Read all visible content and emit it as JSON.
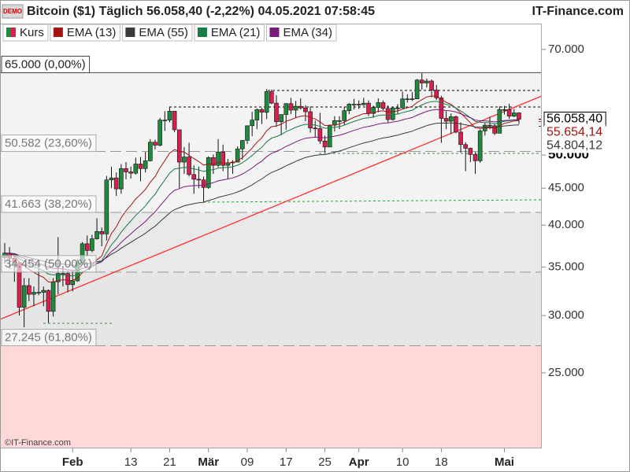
{
  "chart_data": {
    "type": "candlestick",
    "title": "Bitcoin ($1) Täglich 56.058,40 (-2,22%) 04.05.2021 07:58:45",
    "brand": "IT-Finance.com",
    "copyright": "©IT-Finance.com",
    "badge": "DEMO",
    "log_scale": true,
    "ylim": [
      19650,
      76000
    ],
    "yticks": [
      {
        "value": 25000,
        "label": "25.000"
      },
      {
        "value": 30000,
        "label": "30.000"
      },
      {
        "value": 35000,
        "label": "35.000"
      },
      {
        "value": 40000,
        "label": "40.000"
      },
      {
        "value": 45000,
        "label": "45.000"
      },
      {
        "value": 50000,
        "label": "50.000"
      },
      {
        "value": 70000,
        "label": "70.000"
      }
    ],
    "categories": [
      null,
      null,
      null,
      null,
      null,
      null,
      null,
      null,
      null,
      null,
      null,
      null,
      null,
      null,
      "Feb",
      null,
      null,
      null,
      null,
      null,
      null,
      null,
      null,
      null,
      null,
      null,
      "13",
      null,
      null,
      null,
      null,
      null,
      null,
      null,
      "21",
      null,
      null,
      null,
      null,
      null,
      null,
      null,
      "Mär",
      null,
      null,
      null,
      null,
      null,
      null,
      null,
      "09",
      null,
      null,
      null,
      null,
      null,
      null,
      null,
      "17",
      null,
      null,
      null,
      null,
      null,
      null,
      null,
      "25",
      null,
      null,
      null,
      null,
      null,
      null,
      "Apr",
      null,
      null,
      null,
      null,
      null,
      null,
      null,
      null,
      "10",
      null,
      null,
      null,
      null,
      null,
      null,
      null,
      "18",
      null,
      null,
      null,
      null,
      null,
      null,
      null,
      null,
      null,
      null,
      null,
      null,
      "Mai",
      null,
      null,
      null
    ],
    "open": [
      36100,
      36600,
      36000,
      35500,
      30800,
      33000,
      32100,
      32300,
      32300,
      32500,
      30400,
      33400,
      34300,
      34300,
      33100,
      33500,
      35500,
      37700,
      36900,
      38300,
      39200,
      38900,
      46200,
      46500,
      44900,
      47900,
      47400,
      47200,
      48600,
      47900,
      49100,
      52100,
      51600,
      55900,
      55900,
      57500,
      54200,
      48900,
      49700,
      47000,
      46300,
      46200,
      45100,
      49600,
      48400,
      50500,
      48400,
      48800,
      48900,
      51000,
      52400,
      54900,
      55900,
      57800,
      57300,
      61200,
      59000,
      55600,
      56900,
      58900,
      57700,
      58400,
      58100,
      57400,
      54500,
      54400,
      52300,
      51300,
      55000,
      55800,
      55800,
      57600,
      58800,
      58800,
      58700,
      59000,
      57100,
      58200,
      59100,
      58000,
      56000,
      58100,
      58100,
      59800,
      59800,
      59800,
      63500,
      62900,
      63300,
      61500,
      60000,
      56200,
      55700,
      56500,
      53800,
      51700,
      51100,
      50100,
      49100,
      54000,
      55000,
      54900,
      53600,
      57800,
      57800,
      56600,
      57200
    ],
    "high": [
      37800,
      37300,
      36400,
      35600,
      33800,
      33800,
      32900,
      34800,
      32900,
      32600,
      33800,
      38500,
      34800,
      34600,
      34700,
      35900,
      37900,
      38700,
      38800,
      40900,
      39700,
      46800,
      48200,
      47300,
      48600,
      48900,
      48200,
      49600,
      49700,
      50500,
      52600,
      52500,
      56300,
      57500,
      58300,
      57500,
      54200,
      51300,
      52000,
      48400,
      48200,
      46700,
      49800,
      50100,
      52600,
      51700,
      49400,
      49200,
      51400,
      52400,
      54900,
      57400,
      58000,
      58100,
      61700,
      61600,
      60500,
      56900,
      59000,
      60000,
      59400,
      59900,
      58600,
      58400,
      55800,
      57200,
      53200,
      55100,
      56600,
      56600,
      58300,
      59000,
      59800,
      59500,
      60000,
      59500,
      58500,
      59900,
      59500,
      58600,
      58200,
      58800,
      61200,
      60700,
      61100,
      63700,
      64900,
      63800,
      63600,
      62500,
      60400,
      57500,
      57100,
      56700,
      55500,
      52100,
      51200,
      50500,
      54300,
      55400,
      56500,
      55200,
      58400,
      58500,
      58900,
      57900,
      57300
    ],
    "low": [
      35400,
      34800,
      33400,
      30000,
      28900,
      31400,
      30900,
      32000,
      30900,
      29300,
      29900,
      32100,
      32900,
      32300,
      32400,
      33400,
      35400,
      36200,
      36700,
      38200,
      37400,
      38100,
      45000,
      43900,
      44200,
      46300,
      46400,
      47000,
      46000,
      47300,
      49000,
      50900,
      51400,
      54000,
      55500,
      53800,
      45000,
      47100,
      46700,
      44200,
      45000,
      43000,
      44900,
      47100,
      48100,
      47500,
      46300,
      47100,
      48900,
      49300,
      51800,
      53100,
      54300,
      55200,
      56100,
      58800,
      54700,
      53300,
      54200,
      57000,
      56300,
      57800,
      55700,
      53700,
      53000,
      51800,
      50400,
      51300,
      53900,
      54300,
      55000,
      57000,
      57800,
      57900,
      58500,
      56600,
      56300,
      57300,
      57700,
      55500,
      55800,
      57000,
      58000,
      59100,
      59400,
      59800,
      61600,
      62000,
      60100,
      59600,
      52000,
      54300,
      53500,
      53600,
      50400,
      47500,
      48900,
      47100,
      48800,
      53200,
      54300,
      53300,
      53600,
      56900,
      56100,
      56400,
      55200
    ],
    "close": [
      36600,
      36000,
      35500,
      30800,
      33000,
      32100,
      32300,
      32300,
      32500,
      30400,
      33400,
      34300,
      34300,
      33100,
      33500,
      35500,
      37700,
      36900,
      38300,
      39200,
      38900,
      46200,
      46500,
      44900,
      47900,
      47400,
      47200,
      48600,
      47900,
      49100,
      52100,
      51600,
      55900,
      55900,
      57500,
      54200,
      48900,
      49700,
      47000,
      46300,
      46200,
      45100,
      49600,
      48400,
      50500,
      48400,
      48800,
      48900,
      51000,
      52400,
      54900,
      55900,
      57800,
      57300,
      61200,
      59000,
      55600,
      56900,
      58900,
      57700,
      58400,
      58100,
      57400,
      54500,
      54400,
      52300,
      51300,
      55000,
      55800,
      55800,
      57600,
      58800,
      58800,
      58700,
      59000,
      57100,
      58200,
      59100,
      58000,
      56000,
      58100,
      58100,
      59800,
      59800,
      59800,
      63500,
      62900,
      63300,
      61500,
      60000,
      56200,
      55700,
      56500,
      53800,
      51700,
      51100,
      50100,
      49100,
      54000,
      55000,
      54900,
      53600,
      57800,
      57800,
      56600,
      57200,
      56058
    ],
    "candle_colors": {
      "up": "#1f8a3c",
      "down": "#d8204e"
    },
    "price_name": "Kurs",
    "indicators": [
      {
        "name": "EMA (13)",
        "period": 13,
        "color": "#a31515"
      },
      {
        "name": "EMA (55)",
        "period": 55,
        "color": "#3a3a3a"
      },
      {
        "name": "EMA (21)",
        "period": 21,
        "color": "#1b7a45"
      },
      {
        "name": "EMA (34)",
        "period": 34,
        "color": "#7a1a7a"
      }
    ],
    "fib_levels": [
      {
        "value": 65000,
        "label": "65.000 (0,00%)"
      },
      {
        "value": 50582,
        "label": "50.582 (23,60%)"
      },
      {
        "value": 41663,
        "label": "41.663 (38,20%)"
      },
      {
        "value": 34454,
        "label": "34.454 (50,00%)"
      },
      {
        "value": 27245,
        "label": "27.245 (61,80%)"
      }
    ],
    "fib_band_colors": [
      "#f3f3f3",
      "#f3f3f3",
      "#e9e9e9",
      "#e6e6e6",
      "#ffd8d8"
    ],
    "price_labels": [
      {
        "value": 56058.4,
        "label": "56.058,40",
        "color": "#000000"
      },
      {
        "value": 55654.14,
        "label": "55.654,14",
        "color": "#a31515"
      },
      {
        "value": 54804.12,
        "label": "54.804,12",
        "color": "#3a3a3a"
      }
    ]
  }
}
